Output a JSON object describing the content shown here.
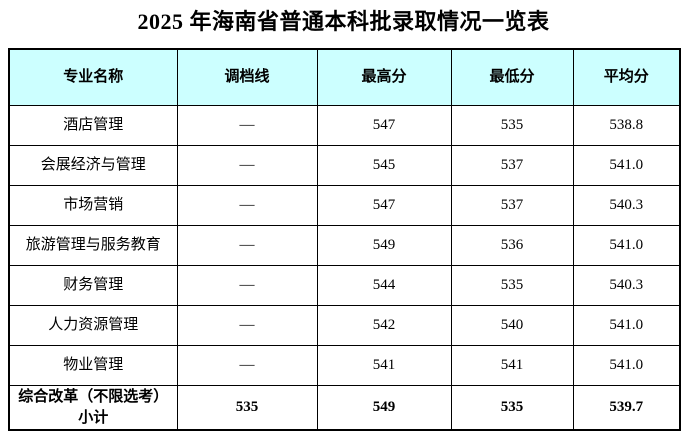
{
  "page": {
    "title": "2025 年海南省普通本科批录取情况一览表"
  },
  "colors": {
    "header_bg": "#CCFFFF",
    "border": "#000000",
    "text": "#000000",
    "page_bg": "#FFFFFF"
  },
  "table": {
    "columns": [
      "专业名称",
      "调档线",
      "最高分",
      "最低分",
      "平均分"
    ],
    "rows": [
      {
        "major": "酒店管理",
        "line": "—",
        "max": "547",
        "min": "535",
        "avg": "538.8"
      },
      {
        "major": "会展经济与管理",
        "line": "—",
        "max": "545",
        "min": "537",
        "avg": "541.0"
      },
      {
        "major": "市场营销",
        "line": "—",
        "max": "547",
        "min": "537",
        "avg": "540.3"
      },
      {
        "major": "旅游管理与服务教育",
        "line": "—",
        "max": "549",
        "min": "536",
        "avg": "541.0"
      },
      {
        "major": "财务管理",
        "line": "—",
        "max": "544",
        "min": "535",
        "avg": "540.3"
      },
      {
        "major": "人力资源管理",
        "line": "—",
        "max": "542",
        "min": "540",
        "avg": "541.0"
      },
      {
        "major": "物业管理",
        "line": "—",
        "max": "541",
        "min": "541",
        "avg": "541.0"
      }
    ],
    "total": {
      "name_lines": [
        "综合改革（不限选考）",
        "小计"
      ],
      "line": "535",
      "max": "549",
      "min": "535",
      "avg": "539.7"
    }
  }
}
